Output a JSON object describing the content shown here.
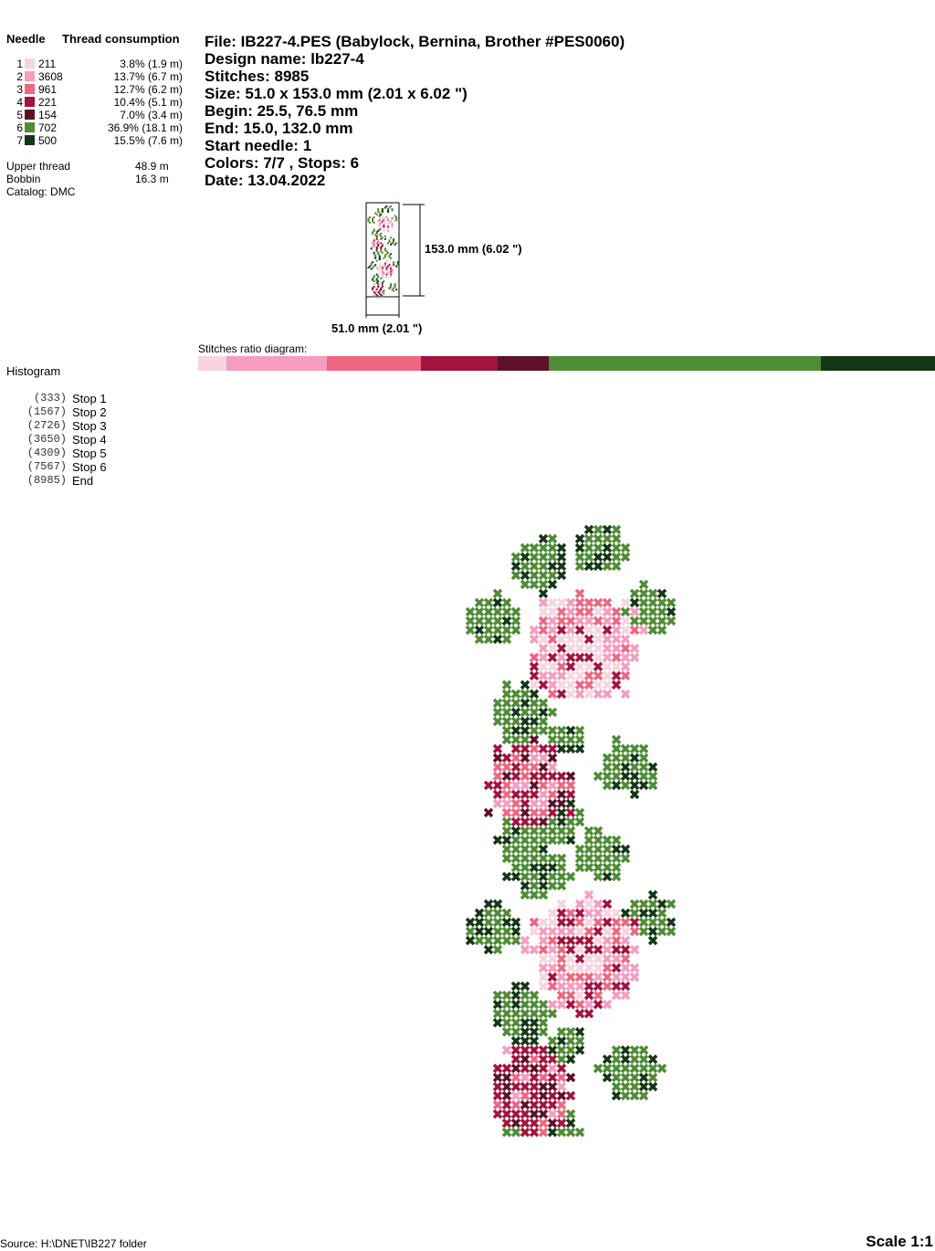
{
  "threads": {
    "needle_header": "Needle",
    "consumption_header": "Thread consumption",
    "items": [
      {
        "needle": "1",
        "code": "211",
        "usage": "3.8% (1.9 m)",
        "color": "#f7d5e0",
        "ratio": 3.8
      },
      {
        "needle": "2",
        "code": "3608",
        "usage": "13.7% (6.7 m)",
        "color": "#f59cc0",
        "ratio": 13.7
      },
      {
        "needle": "3",
        "code": "961",
        "usage": "12.7% (6.2 m)",
        "color": "#ee6680",
        "ratio": 12.7
      },
      {
        "needle": "4",
        "code": "221",
        "usage": "10.4% (5.1 m)",
        "color": "#a3133f",
        "ratio": 10.4
      },
      {
        "needle": "5",
        "code": "154",
        "usage": "7.0% (3.4 m)",
        "color": "#5c1129",
        "ratio": 7.0
      },
      {
        "needle": "6",
        "code": "702",
        "usage": "36.9% (18.1 m)",
        "color": "#4e8c35",
        "ratio": 36.9
      },
      {
        "needle": "7",
        "code": "500",
        "usage": "15.5% (7.6 m)",
        "color": "#143716",
        "ratio": 15.5
      }
    ],
    "upper_label": "Upper thread",
    "upper_value": "48.9 m",
    "bobbin_label": "Bobbin",
    "bobbin_value": "16.3 m",
    "catalog": "Catalog: DMC"
  },
  "info": {
    "file": "File: IB227-4.PES  (Babylock, Bernina, Brother #PES0060)",
    "design": "Design name: lb227-4",
    "stitches": "Stitches: 8985",
    "size": "Size: 51.0 x 153.0 mm (2.01 x 6.02 \")",
    "begin": "Begin: 25.5, 76.5 mm",
    "end": "End: 15.0, 132.0 mm",
    "start_needle": "Start needle: 1",
    "colors": "Colors: 7/7 , Stops: 6",
    "date": "Date: 13.04.2022"
  },
  "preview": {
    "height_label": "153.0 mm (6.02 \")",
    "width_label": "51.0 mm (2.01 \")"
  },
  "ratio_label": "Stitches ratio diagram:",
  "histogram": {
    "title": "Histogram",
    "stops": [
      {
        "count": "(333)",
        "label": "Stop 1"
      },
      {
        "count": "(1567)",
        "label": "Stop 2"
      },
      {
        "count": "(2726)",
        "label": "Stop 3"
      },
      {
        "count": "(3650)",
        "label": "Stop 4"
      },
      {
        "count": "(4309)",
        "label": "Stop 5"
      },
      {
        "count": "(7567)",
        "label": "Stop 6"
      },
      {
        "count": "(8985)",
        "label": "End"
      }
    ]
  },
  "footer": {
    "source": "Source: H:\\DNET\\IB227 folder",
    "scale": "Scale 1:1"
  }
}
